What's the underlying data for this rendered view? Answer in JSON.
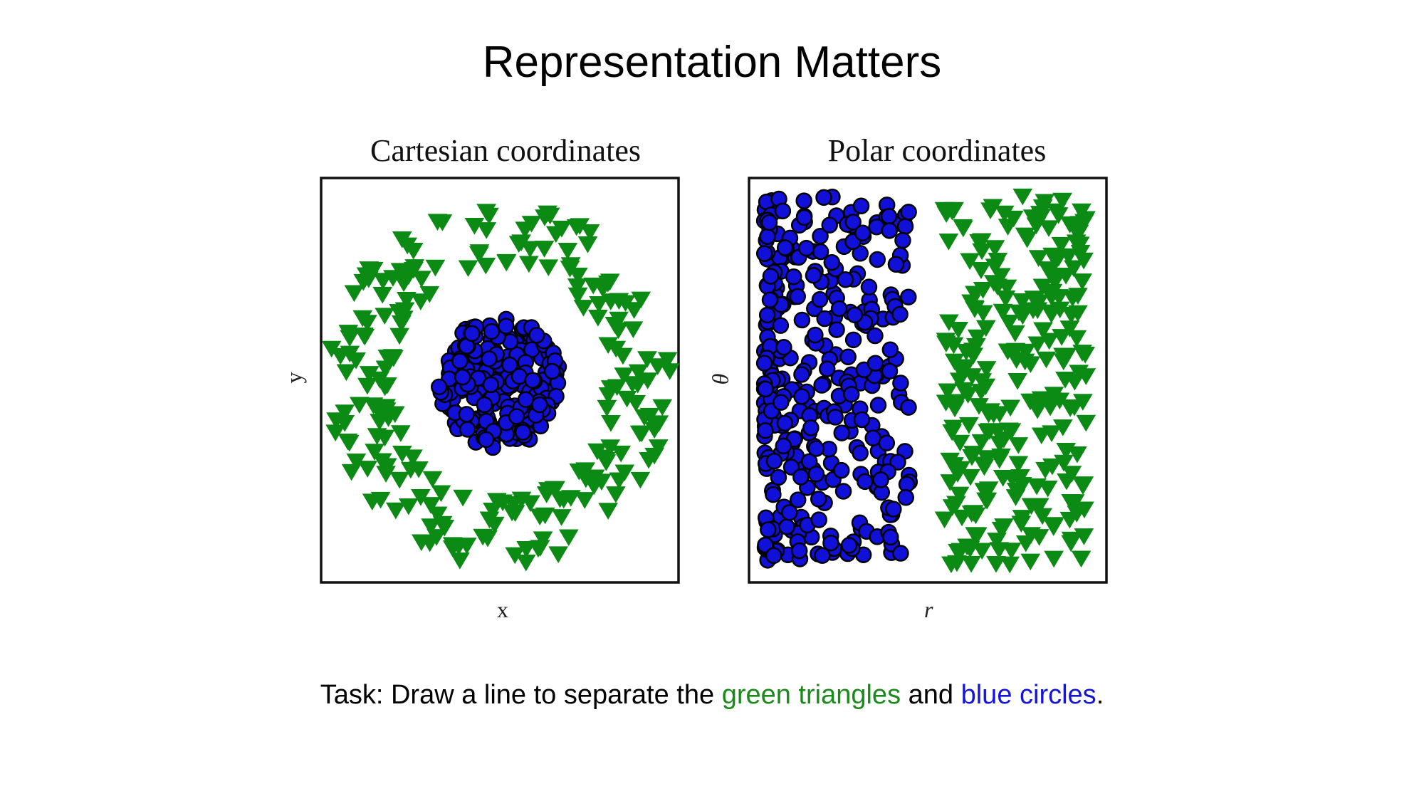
{
  "title": "Representation Matters",
  "task": {
    "prefix": "Task: Draw a line to separate the ",
    "green": "green triangles",
    "middle": " and ",
    "blue": "blue circles",
    "suffix": "."
  },
  "colors": {
    "triangle": "#0b8a14",
    "circle": "#1010d8",
    "outline": "#000000",
    "green_text": "#1a8a1a",
    "blue_text": "#1515d6"
  },
  "chart_data": [
    {
      "type": "scatter",
      "title": "Cartesian coordinates",
      "xlabel": "x",
      "ylabel": "y",
      "xlim": [
        -1,
        1
      ],
      "ylim": [
        -1,
        1
      ],
      "grid": false,
      "series": [
        {
          "name": "green triangles",
          "marker": "triangle-down",
          "distribution": "ring",
          "count": 230,
          "r_range": [
            0.62,
            0.98
          ]
        },
        {
          "name": "blue circles",
          "marker": "circle",
          "distribution": "disk",
          "count": 220,
          "r_range": [
            0,
            0.35
          ]
        }
      ]
    },
    {
      "type": "scatter",
      "title": "Polar coordinates",
      "xlabel": "r",
      "ylabel": "θ",
      "xlim": [
        0,
        1
      ],
      "ylim": [
        0,
        1
      ],
      "grid": false,
      "series": [
        {
          "name": "blue circles",
          "marker": "circle",
          "distribution": "band",
          "count": 330,
          "r_range": [
            0.02,
            0.45
          ]
        },
        {
          "name": "green triangles",
          "marker": "triangle-down",
          "distribution": "band",
          "count": 260,
          "r_range": [
            0.55,
            0.97
          ]
        }
      ]
    }
  ]
}
